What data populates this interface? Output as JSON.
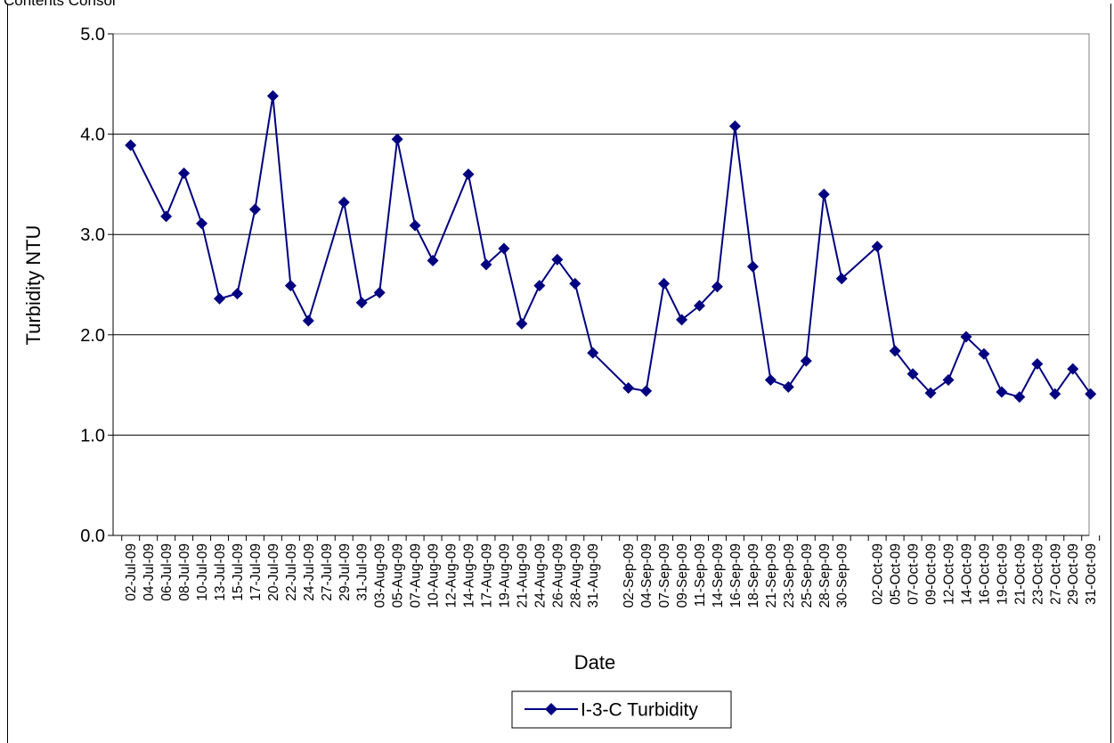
{
  "header": {
    "text": "Contents Consol"
  },
  "chart_data": {
    "type": "line",
    "title": "",
    "xlabel": "Date",
    "ylabel": "Turbidity NTU",
    "ylim": [
      0,
      5
    ],
    "yticks": [
      "0.0",
      "1.0",
      "2.0",
      "3.0",
      "4.0",
      "5.0"
    ],
    "grid": "horizontal",
    "legend_position": "bottom",
    "colors": {
      "series": "#000080",
      "grid": "#000000",
      "plot_border": "#808080"
    },
    "x_labels": [
      "02-Jul-09",
      "04-Jul-09",
      "06-Jul-09",
      "08-Jul-09",
      "10-Jul-09",
      "13-Jul-09",
      "15-Jul-09",
      "17-Jul-09",
      "20-Jul-09",
      "22-Jul-09",
      "24-Jul-09",
      "27-Jul-09",
      "29-Jul-09",
      "31-Jul-09",
      "03-Aug-09",
      "05-Aug-09",
      "07-Aug-09",
      "10-Aug-09",
      "12-Aug-09",
      "14-Aug-09",
      "17-Aug-09",
      "19-Aug-09",
      "21-Aug-09",
      "24-Aug-09",
      "26-Aug-09",
      "28-Aug-09",
      "31-Aug-09",
      "",
      "02-Sep-09",
      "04-Sep-09",
      "07-Sep-09",
      "09-Sep-09",
      "11-Sep-09",
      "14-Sep-09",
      "16-Sep-09",
      "18-Sep-09",
      "21-Sep-09",
      "23-Sep-09",
      "25-Sep-09",
      "28-Sep-09",
      "30-Sep-09",
      "",
      "02-Oct-09",
      "05-Oct-09",
      "07-Oct-09",
      "09-Oct-09",
      "12-Oct-09",
      "14-Oct-09",
      "16-Oct-09",
      "19-Oct-09",
      "21-Oct-09",
      "23-Oct-09",
      "27-Oct-09",
      "29-Oct-09",
      "31-Oct-09"
    ],
    "series": [
      {
        "name": "I-3-C Turbidity",
        "values": [
          3.89,
          null,
          3.18,
          3.61,
          3.11,
          2.36,
          2.41,
          3.25,
          4.38,
          2.49,
          2.14,
          null,
          3.32,
          2.32,
          2.42,
          3.95,
          3.09,
          2.74,
          null,
          3.6,
          2.7,
          2.86,
          2.11,
          2.49,
          2.75,
          2.51,
          1.82,
          null,
          1.47,
          1.44,
          2.51,
          2.15,
          2.29,
          2.48,
          4.08,
          2.68,
          1.55,
          1.48,
          1.74,
          3.4,
          2.56,
          null,
          2.88,
          1.84,
          1.61,
          1.42,
          1.55,
          1.98,
          1.81,
          1.43,
          1.38,
          1.71,
          1.41,
          1.66,
          1.41
        ]
      }
    ]
  }
}
